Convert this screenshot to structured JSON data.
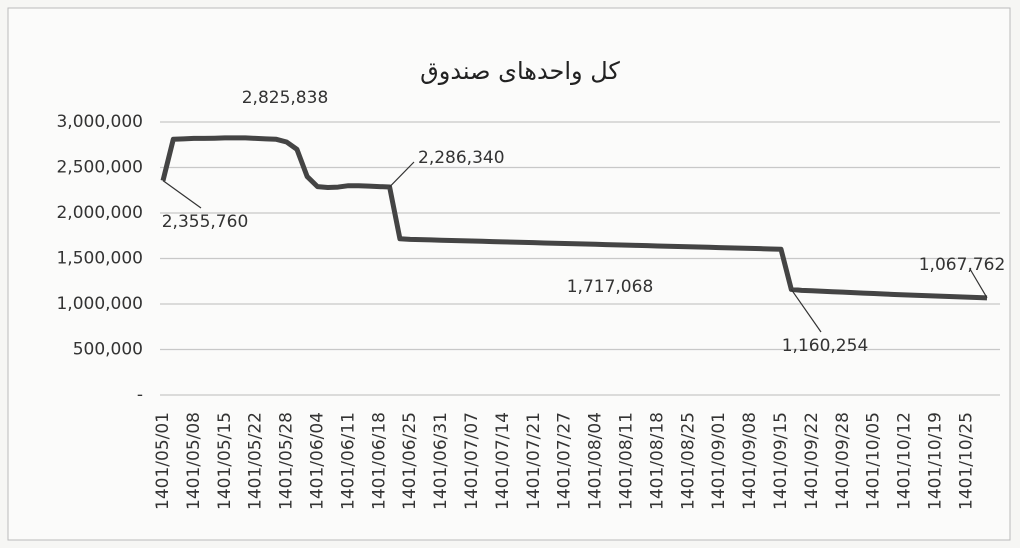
{
  "chart_data": {
    "type": "line",
    "title": "کل واحدهای صندوق",
    "categories": [
      "1401/05/01",
      null,
      null,
      "1401/05/08",
      null,
      null,
      "1401/05/15",
      null,
      null,
      "1401/05/22",
      null,
      null,
      "1401/05/28",
      null,
      null,
      "1401/06/04",
      null,
      null,
      "1401/06/11",
      null,
      null,
      "1401/06/18",
      null,
      null,
      "1401/06/25",
      null,
      null,
      "1401/06/31",
      null,
      null,
      "1401/07/07",
      null,
      null,
      "1401/07/14",
      null,
      null,
      "1401/07/21",
      null,
      null,
      "1401/07/27",
      null,
      null,
      "1401/08/04",
      null,
      null,
      "1401/08/11",
      null,
      null,
      "1401/08/18",
      null,
      null,
      "1401/08/25",
      null,
      null,
      "1401/09/01",
      null,
      null,
      "1401/09/08",
      null,
      null,
      "1401/09/15",
      null,
      null,
      "1401/09/22",
      null,
      null,
      "1401/09/28",
      null,
      null,
      "1401/10/05",
      null,
      null,
      "1401/10/12",
      null,
      null,
      "1401/10/19",
      null,
      null,
      "1401/10/25",
      null,
      null
    ],
    "series": [
      {
        "color": "#444444",
        "values": [
          2355760,
          2810000,
          2815000,
          2820000,
          2820000,
          2822000,
          2825000,
          2825000,
          2825838,
          2820000,
          2815000,
          2810000,
          2780000,
          2700000,
          2400000,
          2290000,
          2280000,
          2285000,
          2300000,
          2300000,
          2295000,
          2290000,
          2286340,
          1717068,
          1710000,
          1707000,
          1704000,
          1701000,
          1698000,
          1695000,
          1692000,
          1689000,
          1686000,
          1683000,
          1680000,
          1677000,
          1674000,
          1671000,
          1668000,
          1665000,
          1662000,
          1659000,
          1656000,
          1653000,
          1650000,
          1647000,
          1644000,
          1641000,
          1638000,
          1635000,
          1632000,
          1629000,
          1626000,
          1623000,
          1620000,
          1617000,
          1614000,
          1611000,
          1608000,
          1605000,
          1602000,
          1160254,
          1150000,
          1145000,
          1140000,
          1135000,
          1130000,
          1125000,
          1120000,
          1115000,
          1110000,
          1105000,
          1100000,
          1096000,
          1092000,
          1088000,
          1084000,
          1080000,
          1076000,
          1072000,
          1067762
        ],
        "value_labels": [
          "2,355,760",
          null,
          null,
          null,
          null,
          null,
          null,
          null,
          "2,825,838",
          null,
          null,
          null,
          null,
          null,
          null,
          null,
          null,
          null,
          null,
          null,
          null,
          null,
          "2,286,340",
          "1,717,068",
          null,
          null,
          null,
          null,
          null,
          null,
          null,
          null,
          null,
          null,
          null,
          null,
          null,
          null,
          null,
          null,
          null,
          null,
          null,
          null,
          null,
          null,
          null,
          null,
          null,
          null,
          null,
          null,
          null,
          null,
          null,
          null,
          null,
          null,
          null,
          null,
          null,
          "1,160,254",
          null,
          null,
          null,
          null,
          null,
          null,
          null,
          null,
          null,
          null,
          null,
          null,
          null,
          null,
          null,
          null,
          null,
          null,
          "1,067,762"
        ]
      }
    ],
    "ylim": [
      0,
      3000000
    ],
    "yticks": [
      {
        "value": 0,
        "label": "-"
      },
      {
        "value": 500000,
        "label": "500,000"
      },
      {
        "value": 1000000,
        "label": "1,000,000"
      },
      {
        "value": 1500000,
        "label": "1,500,000"
      },
      {
        "value": 2000000,
        "label": "2,000,000"
      },
      {
        "value": 2500000,
        "label": "2,500,000"
      },
      {
        "value": 3000000,
        "label": "3,000,000"
      }
    ],
    "grid": true
  }
}
